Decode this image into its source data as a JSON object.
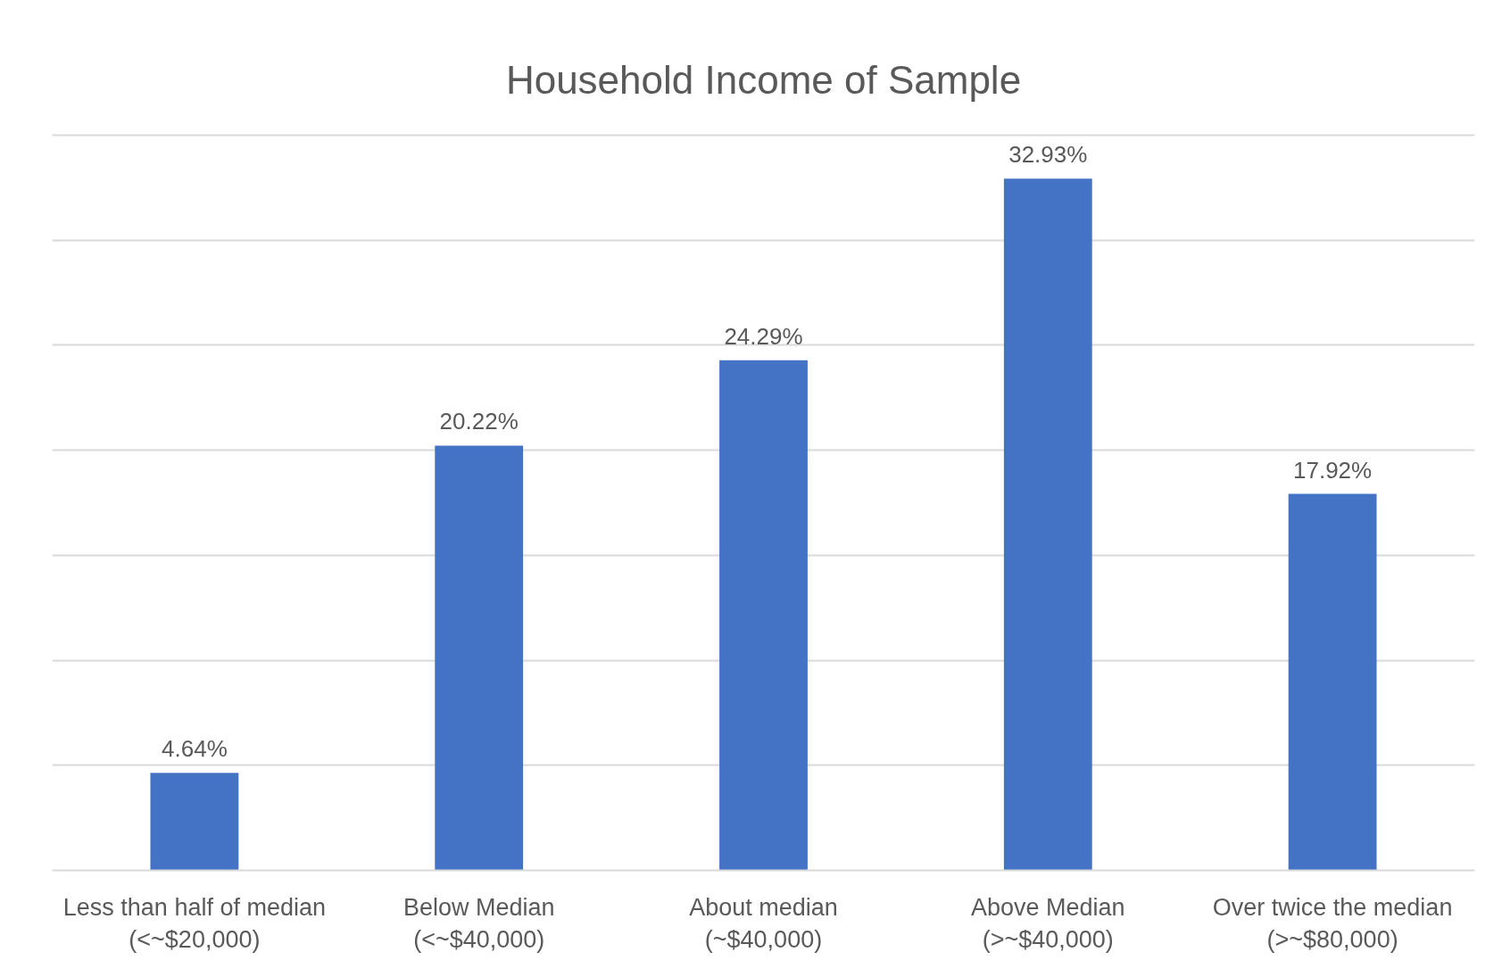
{
  "chart_data": {
    "type": "bar",
    "title": "Household Income of Sample",
    "categories": [
      "Less than half of median\n(<~$20,000)",
      "Below Median\n(<~$40,000)",
      "About median\n(~$40,000)",
      "Above Median\n(>~$40,000)",
      "Over twice the median\n(>~$80,000)"
    ],
    "values": [
      4.64,
      20.22,
      24.29,
      32.93,
      17.92
    ],
    "color": "#4472c4",
    "value_labels": [
      "4.64%",
      "20.22%",
      "24.29%",
      "32.93%",
      "17.92%"
    ],
    "ylim": [
      0,
      35
    ],
    "yticks": [
      {
        "value": 0,
        "label": null
      },
      {
        "value": 5,
        "label": null
      },
      {
        "value": 10,
        "label": null
      },
      {
        "value": 15,
        "label": null
      },
      {
        "value": 20,
        "label": null
      },
      {
        "value": 25,
        "label": null
      },
      {
        "value": 30,
        "label": null
      },
      {
        "value": 35,
        "label": null
      }
    ],
    "grid": "y",
    "tick_labels": "x"
  }
}
